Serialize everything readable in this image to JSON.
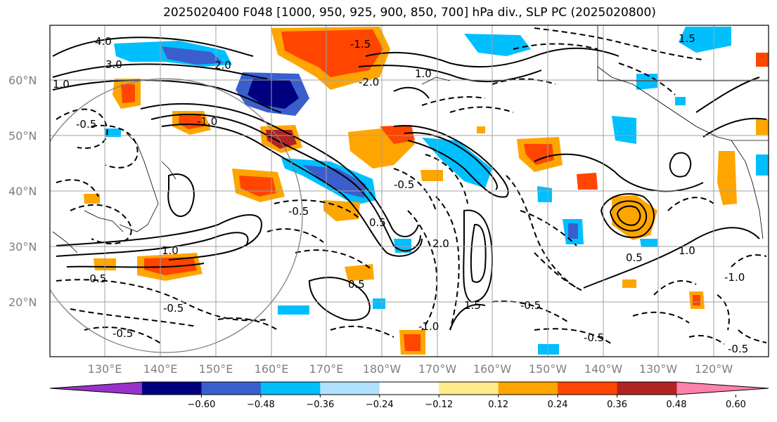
{
  "title": "2025020400 F048 [1000, 950, 925, 900, 850, 700] hPa div., SLP PC (2025020800)",
  "lat_labels": [
    "60°N",
    "50°N",
    "40°N",
    "30°N",
    "20°N"
  ],
  "lon_labels": [
    "130°E",
    "140°E",
    "150°E",
    "160°E",
    "170°E",
    "180°W",
    "170°W",
    "160°W",
    "150°W",
    "140°W",
    "130°W",
    "120°W"
  ],
  "colorbar": {
    "ticks": [
      "−0.60",
      "−0.48",
      "−0.36",
      "−0.24",
      "−0.12",
      "0.12",
      "0.24",
      "0.36",
      "0.48",
      "0.60"
    ],
    "colors": [
      "#9932cc",
      "#000080",
      "#3a5fcd",
      "#00bfff",
      "#b0e2ff",
      "#ffffff",
      "#ffec8b",
      "#ffa500",
      "#ff4500",
      "#b22222",
      "#ff82ab"
    ]
  },
  "contour_labels": [
    "4.0",
    "3.0",
    "2.0",
    "1.0",
    "-0.5",
    "-1.0",
    "-1.5",
    "-2.0",
    "-0.5",
    "-0.5",
    "0.5",
    "1.0",
    "1.5",
    "2.0",
    "-0.5",
    "-0.5",
    "0.5",
    "-1.0",
    "1.0",
    "-0.5",
    "-0.5",
    "-0.5",
    "0.5",
    "1.0",
    "-1.0",
    "-0.5",
    "1.5"
  ]
}
